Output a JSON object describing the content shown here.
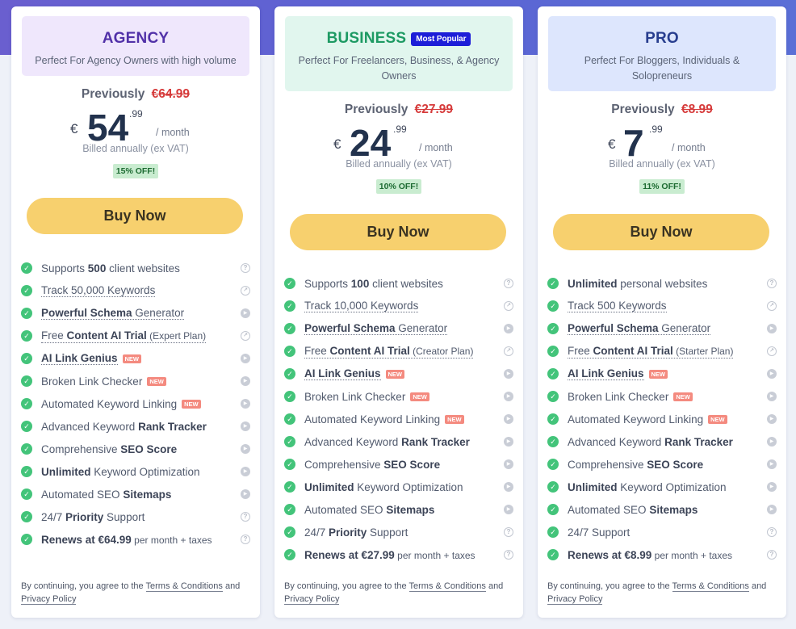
{
  "plans": [
    {
      "name": "AGENCY",
      "badge": "",
      "desc": "Perfect For Agency Owners with high volume",
      "previous_label": "Previously",
      "previous_price": "€64.99",
      "currency": "€",
      "price_whole": "54",
      "price_cents": ".99",
      "period": "/ month",
      "billed": "Billed annually (ex VAT)",
      "discount": "15% OFF!",
      "buy_label": "Buy Now",
      "features": [
        {
          "parts": [
            {
              "t": "Supports "
            },
            {
              "t": "500",
              "b": true
            },
            {
              "t": " client websites"
            }
          ],
          "dotted": false,
          "icon": "q"
        },
        {
          "parts": [
            {
              "t": "Track 50,000 Keywords"
            }
          ],
          "dotted": true,
          "icon": "arrow"
        },
        {
          "parts": [
            {
              "t": "Powerful Schema",
              "b": true
            },
            {
              "t": " Generator"
            }
          ],
          "dotted": true,
          "icon": "play"
        },
        {
          "parts": [
            {
              "t": "Free "
            },
            {
              "t": "Content AI Trial",
              "b": true
            },
            {
              "t": " (Expert Plan)",
              "s": true
            }
          ],
          "dotted": true,
          "icon": "arrow"
        },
        {
          "parts": [
            {
              "t": "AI Link Genius",
              "b": true
            }
          ],
          "dotted": true,
          "new": "NEW",
          "icon": "play"
        },
        {
          "parts": [
            {
              "t": "Broken Link Checker"
            }
          ],
          "dotted": false,
          "new": "NEW",
          "icon": "play"
        },
        {
          "parts": [
            {
              "t": "Automated Keyword Linking"
            }
          ],
          "dotted": false,
          "new": "NEW",
          "icon": "play"
        },
        {
          "parts": [
            {
              "t": "Advanced Keyword "
            },
            {
              "t": "Rank Tracker",
              "b": true
            }
          ],
          "dotted": false,
          "icon": "play"
        },
        {
          "parts": [
            {
              "t": "Comprehensive "
            },
            {
              "t": "SEO Score",
              "b": true
            }
          ],
          "dotted": false,
          "icon": "play"
        },
        {
          "parts": [
            {
              "t": "Unlimited",
              "b": true
            },
            {
              "t": " Keyword Optimization"
            }
          ],
          "dotted": false,
          "icon": "play"
        },
        {
          "parts": [
            {
              "t": "Automated SEO "
            },
            {
              "t": "Sitemaps",
              "b": true
            }
          ],
          "dotted": false,
          "icon": "play"
        },
        {
          "parts": [
            {
              "t": "24/7 "
            },
            {
              "t": "Priority",
              "b": true
            },
            {
              "t": " Support"
            }
          ],
          "dotted": false,
          "icon": "q"
        },
        {
          "parts": [
            {
              "t": "Renews at €64.99",
              "b": true
            },
            {
              "t": " per month + taxes",
              "s": true
            }
          ],
          "dotted": false,
          "icon": "q"
        }
      ],
      "terms_pre": "By continuing, you agree to the ",
      "terms_link": "Terms & Conditions",
      "terms_mid": " and ",
      "privacy_link": "Privacy Policy"
    },
    {
      "name": "BUSINESS",
      "badge": "Most Popular",
      "desc": "Perfect For Freelancers, Business, & Agency Owners",
      "previous_label": "Previously",
      "previous_price": "€27.99",
      "currency": "€",
      "price_whole": "24",
      "price_cents": ".99",
      "period": "/ month",
      "billed": "Billed annually (ex VAT)",
      "discount": "10% OFF!",
      "buy_label": "Buy Now",
      "features": [
        {
          "parts": [
            {
              "t": "Supports "
            },
            {
              "t": "100",
              "b": true
            },
            {
              "t": " client websites"
            }
          ],
          "dotted": false,
          "icon": "q"
        },
        {
          "parts": [
            {
              "t": "Track 10,000 Keywords"
            }
          ],
          "dotted": true,
          "icon": "arrow"
        },
        {
          "parts": [
            {
              "t": "Powerful Schema",
              "b": true
            },
            {
              "t": " Generator"
            }
          ],
          "dotted": true,
          "icon": "play"
        },
        {
          "parts": [
            {
              "t": "Free "
            },
            {
              "t": "Content AI Trial",
              "b": true
            },
            {
              "t": " (Creator Plan)",
              "s": true
            }
          ],
          "dotted": true,
          "icon": "arrow"
        },
        {
          "parts": [
            {
              "t": "AI Link Genius",
              "b": true
            }
          ],
          "dotted": true,
          "new": "NEW",
          "icon": "play"
        },
        {
          "parts": [
            {
              "t": "Broken Link Checker"
            }
          ],
          "dotted": false,
          "new": "NEW",
          "icon": "play"
        },
        {
          "parts": [
            {
              "t": "Automated Keyword Linking"
            }
          ],
          "dotted": false,
          "new": "NEW",
          "icon": "play"
        },
        {
          "parts": [
            {
              "t": "Advanced Keyword "
            },
            {
              "t": "Rank Tracker",
              "b": true
            }
          ],
          "dotted": false,
          "icon": "play"
        },
        {
          "parts": [
            {
              "t": "Comprehensive "
            },
            {
              "t": "SEO Score",
              "b": true
            }
          ],
          "dotted": false,
          "icon": "play"
        },
        {
          "parts": [
            {
              "t": "Unlimited",
              "b": true
            },
            {
              "t": " Keyword Optimization"
            }
          ],
          "dotted": false,
          "icon": "play"
        },
        {
          "parts": [
            {
              "t": "Automated SEO "
            },
            {
              "t": "Sitemaps",
              "b": true
            }
          ],
          "dotted": false,
          "icon": "play"
        },
        {
          "parts": [
            {
              "t": "24/7 "
            },
            {
              "t": "Priority",
              "b": true
            },
            {
              "t": " Support"
            }
          ],
          "dotted": false,
          "icon": "q"
        },
        {
          "parts": [
            {
              "t": "Renews at €27.99",
              "b": true
            },
            {
              "t": " per month + taxes",
              "s": true
            }
          ],
          "dotted": false,
          "icon": "q"
        }
      ],
      "terms_pre": "By continuing, you agree to the ",
      "terms_link": "Terms & Conditions",
      "terms_mid": " and ",
      "privacy_link": "Privacy Policy"
    },
    {
      "name": "PRO",
      "badge": "",
      "desc": "Perfect For Bloggers, Individuals & Solopreneurs",
      "previous_label": "Previously",
      "previous_price": "€8.99",
      "currency": "€",
      "price_whole": "7",
      "price_cents": ".99",
      "period": "/ month",
      "billed": "Billed annually (ex VAT)",
      "discount": "11% OFF!",
      "buy_label": "Buy Now",
      "features": [
        {
          "parts": [
            {
              "t": "Unlimited",
              "b": true
            },
            {
              "t": " personal websites"
            }
          ],
          "dotted": false,
          "icon": "q"
        },
        {
          "parts": [
            {
              "t": "Track 500 Keywords"
            }
          ],
          "dotted": true,
          "icon": "arrow"
        },
        {
          "parts": [
            {
              "t": "Powerful Schema",
              "b": true
            },
            {
              "t": " Generator"
            }
          ],
          "dotted": true,
          "icon": "play"
        },
        {
          "parts": [
            {
              "t": "Free "
            },
            {
              "t": "Content AI Trial",
              "b": true
            },
            {
              "t": " (Starter Plan)",
              "s": true
            }
          ],
          "dotted": true,
          "icon": "arrow"
        },
        {
          "parts": [
            {
              "t": "AI Link Genius",
              "b": true
            }
          ],
          "dotted": true,
          "new": "NEW",
          "icon": "play"
        },
        {
          "parts": [
            {
              "t": "Broken Link Checker"
            }
          ],
          "dotted": false,
          "new": "NEW",
          "icon": "play"
        },
        {
          "parts": [
            {
              "t": "Automated Keyword Linking"
            }
          ],
          "dotted": false,
          "new": "NEW",
          "icon": "play"
        },
        {
          "parts": [
            {
              "t": "Advanced Keyword "
            },
            {
              "t": "Rank Tracker",
              "b": true
            }
          ],
          "dotted": false,
          "icon": "play"
        },
        {
          "parts": [
            {
              "t": "Comprehensive "
            },
            {
              "t": "SEO Score",
              "b": true
            }
          ],
          "dotted": false,
          "icon": "play"
        },
        {
          "parts": [
            {
              "t": "Unlimited",
              "b": true
            },
            {
              "t": " Keyword Optimization"
            }
          ],
          "dotted": false,
          "icon": "play"
        },
        {
          "parts": [
            {
              "t": "Automated SEO "
            },
            {
              "t": "Sitemaps",
              "b": true
            }
          ],
          "dotted": false,
          "icon": "play"
        },
        {
          "parts": [
            {
              "t": "24/7 Support"
            }
          ],
          "dotted": false,
          "icon": "q"
        },
        {
          "parts": [
            {
              "t": "Renews at €8.99",
              "b": true
            },
            {
              "t": " per month + taxes",
              "s": true
            }
          ],
          "dotted": false,
          "icon": "q"
        }
      ],
      "terms_pre": "By continuing, you agree to the ",
      "terms_link": "Terms & Conditions",
      "terms_mid": " and ",
      "privacy_link": "Privacy Policy"
    }
  ]
}
